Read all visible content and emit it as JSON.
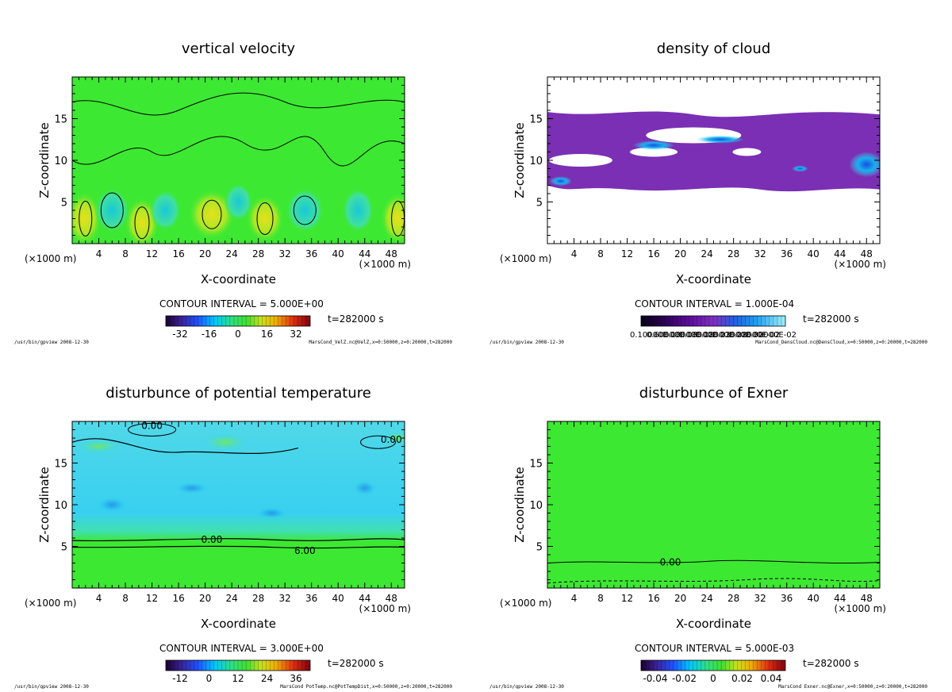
{
  "chart_data": [
    {
      "type": "heatmap",
      "title": "vertical velocity",
      "xlabel": "X-coordinate",
      "ylabel": "Z-coordinate",
      "x_unit": "(×1000 m)",
      "xticks": [
        "4",
        "8",
        "12",
        "16",
        "20",
        "24",
        "28",
        "32",
        "36",
        "40",
        "44",
        "48"
      ],
      "yticks": [
        "5",
        "10",
        "15"
      ],
      "xlim": [
        0,
        50
      ],
      "ylim": [
        0,
        20
      ],
      "contour_interval": "CONTOUR INTERVAL = 5.000E+00",
      "time": "t=282000 s",
      "colorbar_ticks": [
        "-32",
        "-16",
        "0",
        "16",
        "32"
      ],
      "colormap": "rainbow",
      "background_color": "#3de832",
      "contour_labels": [],
      "footer_left": "/usr/bin/gpview  2008-12-30",
      "footer_right": "MarsCond_VelZ.nc@VelZ,x=0:50000,z=0:20000,t=282000"
    },
    {
      "type": "heatmap",
      "title": "density of cloud",
      "xlabel": "X-coordinate",
      "ylabel": "Z-coordinate",
      "x_unit": "(×1000 m)",
      "xticks": [
        "4",
        "8",
        "12",
        "16",
        "20",
        "24",
        "28",
        "32",
        "36",
        "40",
        "44",
        "48"
      ],
      "yticks": [
        "5",
        "10",
        "15"
      ],
      "xlim": [
        0,
        50
      ],
      "ylim": [
        0,
        20
      ],
      "contour_interval": "CONTOUR INTERVAL = 1.000E-04",
      "time": "t=282000 s",
      "colorbar_ticks": [
        "0.10000E-03",
        "0.60000E-03",
        "0.10000E-02",
        "0.16000E-02",
        "0.18000E-02",
        "0.23000E-02",
        "0.28000E-02",
        "0.30000E-02"
      ],
      "colormap": "dark",
      "background_color": "#ffffff",
      "contour_labels": [],
      "footer_left": "/usr/bin/gpview  2008-12-30",
      "footer_right": "MarsCond_DensCloud.nc@DensCloud,x=0:50000,z=0:20000,t=282000"
    },
    {
      "type": "heatmap",
      "title": "disturbunce of potential temperature",
      "xlabel": "X-coordinate",
      "ylabel": "Z-coordinate",
      "x_unit": "(×1000 m)",
      "xticks": [
        "4",
        "8",
        "12",
        "16",
        "20",
        "24",
        "28",
        "32",
        "36",
        "40",
        "44",
        "48"
      ],
      "yticks": [
        "5",
        "10",
        "15"
      ],
      "xlim": [
        0,
        50
      ],
      "ylim": [
        0,
        20
      ],
      "contour_interval": "CONTOUR INTERVAL = 3.000E+00",
      "time": "t=282000 s",
      "colorbar_ticks": [
        "-12",
        "0",
        "12",
        "24",
        "36"
      ],
      "colormap": "rainbow",
      "background_color": "#3de832",
      "contour_labels": [
        "0.00",
        "0.00",
        "0.00",
        "6.00"
      ],
      "footer_left": "/usr/bin/gpview  2008-12-30",
      "footer_right": "MarsCond_PotTemp.nc@PotTempDist,x=0:50000,z=0:20000,t=282000"
    },
    {
      "type": "heatmap",
      "title": "disturbunce of Exner",
      "xlabel": "X-coordinate",
      "ylabel": "Z-coordinate",
      "x_unit": "(×1000 m)",
      "xticks": [
        "4",
        "8",
        "12",
        "16",
        "20",
        "24",
        "28",
        "32",
        "36",
        "40",
        "44",
        "48"
      ],
      "yticks": [
        "5",
        "10",
        "15"
      ],
      "xlim": [
        0,
        50
      ],
      "ylim": [
        0,
        20
      ],
      "contour_interval": "CONTOUR INTERVAL = 5.000E-03",
      "time": "t=282000 s",
      "colorbar_ticks": [
        "-0.04",
        "-0.02",
        "0",
        "0.02",
        "0.04"
      ],
      "colormap": "rainbow",
      "background_color": "#3de832",
      "contour_labels": [
        "0.00"
      ],
      "footer_left": "/usr/bin/gpview  2008-12-30",
      "footer_right": "MarsCond_Exner.nc@Exner,x=0:50000,z=0:20000,t=282000"
    }
  ]
}
